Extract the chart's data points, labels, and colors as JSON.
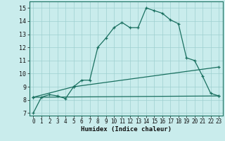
{
  "xlabel": "Humidex (Indice chaleur)",
  "xlim": [
    -0.5,
    23.5
  ],
  "ylim": [
    6.8,
    15.5
  ],
  "yticks": [
    7,
    8,
    9,
    10,
    11,
    12,
    13,
    14,
    15
  ],
  "xticks": [
    0,
    1,
    2,
    3,
    4,
    5,
    6,
    7,
    8,
    9,
    10,
    11,
    12,
    13,
    14,
    15,
    16,
    17,
    18,
    19,
    20,
    21,
    22,
    23
  ],
  "bg_color": "#c9ecec",
  "line_color": "#1a7060",
  "grid_color": "#9ed0d0",
  "curve1_x": [
    0,
    1,
    2,
    3,
    4,
    5,
    6,
    7,
    8,
    9,
    10,
    11,
    12,
    13,
    14,
    15,
    16,
    17,
    18,
    19,
    20,
    21,
    22,
    23
  ],
  "curve1_y": [
    7.0,
    8.2,
    8.4,
    8.3,
    8.1,
    9.0,
    9.5,
    9.5,
    12.0,
    12.7,
    13.5,
    13.9,
    13.5,
    13.5,
    15.0,
    14.8,
    14.6,
    14.1,
    13.8,
    11.2,
    11.0,
    9.8,
    8.5,
    8.3
  ],
  "curve2_x": [
    0,
    5,
    23
  ],
  "curve2_y": [
    8.2,
    9.0,
    10.5
  ],
  "curve3_x": [
    0,
    23
  ],
  "curve3_y": [
    8.2,
    8.3
  ]
}
